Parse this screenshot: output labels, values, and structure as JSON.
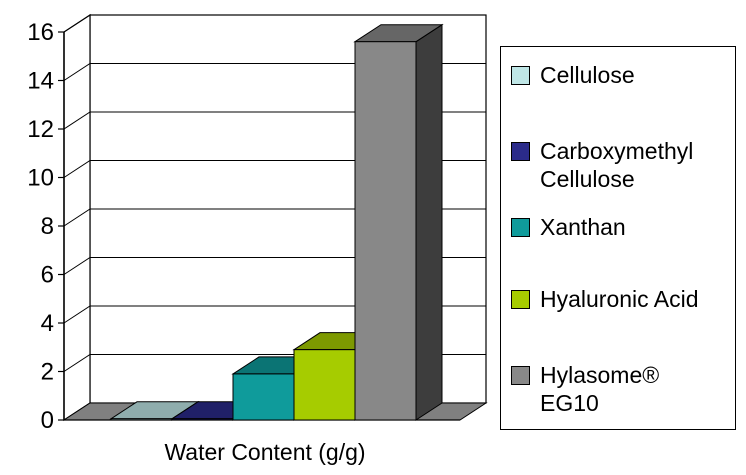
{
  "chart_data": {
    "type": "bar",
    "xlabel": "Water Content (g/g)",
    "ylabel": "",
    "ylim": [
      0,
      16
    ],
    "yticks": [
      0,
      2,
      4,
      6,
      8,
      10,
      12,
      14,
      16
    ],
    "grid": true,
    "legend_position": "right",
    "categories": [
      "Water Content (g/g)"
    ],
    "series": [
      {
        "name": "Cellulose",
        "values": [
          0.05
        ],
        "color": "#bfe6e6"
      },
      {
        "name": "Carboxymethyl Cellulose",
        "values": [
          0.05
        ],
        "color": "#2b2b8a"
      },
      {
        "name": "Xanthan",
        "values": [
          1.9
        ],
        "color": "#0f9b9b"
      },
      {
        "name": "Hyaluronic Acid",
        "values": [
          2.9
        ],
        "color": "#a6cc00"
      },
      {
        "name": "Hylasome® EG10",
        "values": [
          15.6
        ],
        "color": "#888888"
      }
    ]
  },
  "legend": {
    "items": [
      {
        "lines": [
          "Cellulose"
        ]
      },
      {
        "lines": [
          "Carboxymethyl",
          "Cellulose"
        ]
      },
      {
        "lines": [
          "Xanthan"
        ]
      },
      {
        "lines": [
          "Hyaluronic Acid"
        ]
      },
      {
        "lines": [
          "Hylasome®",
          "EG10"
        ]
      }
    ]
  }
}
